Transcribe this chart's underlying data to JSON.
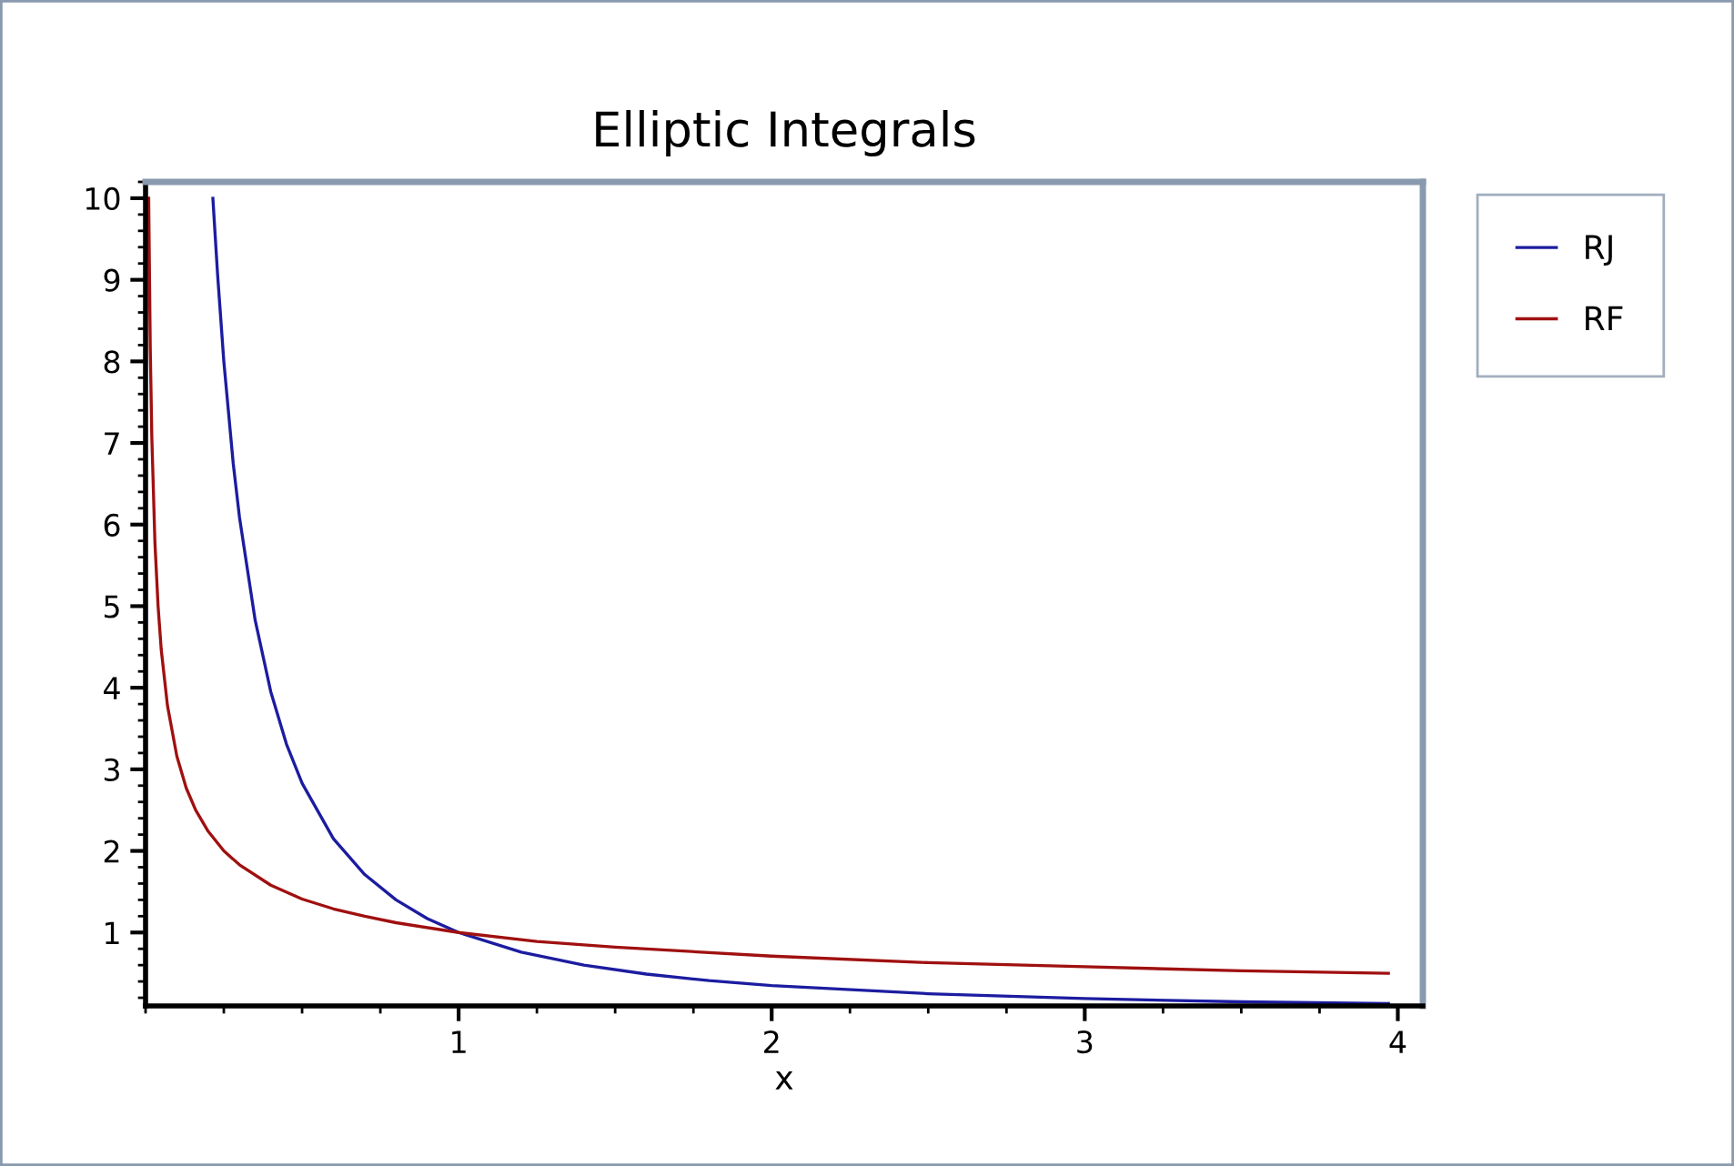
{
  "chart_data": {
    "type": "line",
    "title": "Elliptic Integrals",
    "xlabel": "x",
    "series": [
      {
        "name": "RJ",
        "color": "#1c1ca0",
        "x": [
          0.215,
          0.23,
          0.25,
          0.28,
          0.3,
          0.35,
          0.4,
          0.45,
          0.5,
          0.6,
          0.7,
          0.8,
          0.9,
          1,
          1.2,
          1.4,
          1.6,
          1.8,
          2,
          2.5,
          3,
          3.5,
          3.97
        ],
        "values": [
          10.0,
          9.07,
          8,
          6.75,
          6.09,
          4.83,
          3.95,
          3.31,
          2.83,
          2.15,
          1.71,
          1.4,
          1.17,
          1,
          0.76,
          0.6,
          0.49,
          0.41,
          0.35,
          0.25,
          0.19,
          0.15,
          0.13
        ]
      },
      {
        "name": "RF",
        "color": "#a01010",
        "x": [
          0.01,
          0.015,
          0.02,
          0.03,
          0.04,
          0.05,
          0.07,
          0.1,
          0.13,
          0.16,
          0.2,
          0.25,
          0.3,
          0.4,
          0.5,
          0.6,
          0.7,
          0.8,
          1,
          1.25,
          1.5,
          2,
          2.5,
          3,
          3.5,
          3.97
        ],
        "values": [
          10,
          8.16,
          7.07,
          5.77,
          5,
          4.47,
          3.78,
          3.16,
          2.77,
          2.5,
          2.24,
          2,
          1.83,
          1.58,
          1.41,
          1.29,
          1.2,
          1.12,
          1,
          0.89,
          0.82,
          0.71,
          0.63,
          0.58,
          0.53,
          0.5
        ]
      }
    ],
    "xlim": [
      0,
      4.08
    ],
    "ylim": [
      0.1,
      10.2
    ],
    "xticks": [
      1,
      2,
      3,
      4
    ],
    "yticks": [
      1,
      2,
      3,
      4,
      5,
      6,
      7,
      8,
      9,
      10
    ],
    "grid": false,
    "legend": "top right",
    "line_style": "solid"
  }
}
